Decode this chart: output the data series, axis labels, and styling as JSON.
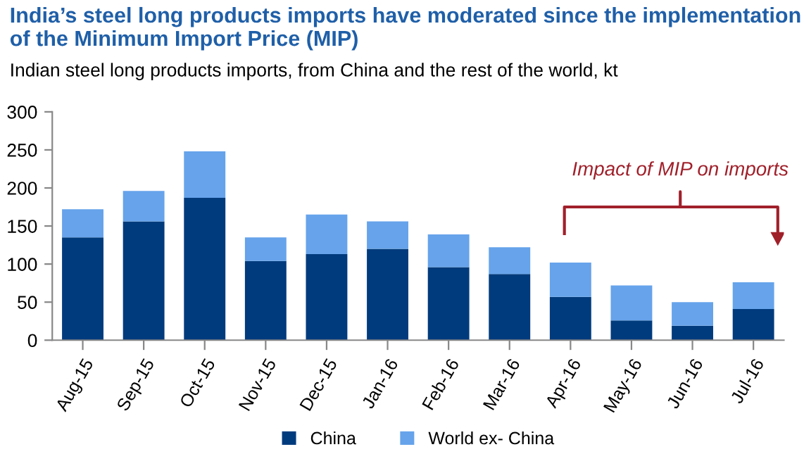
{
  "chart_data": {
    "type": "bar",
    "stacked": true,
    "title": "India’s steel long products imports have moderated since the implementation of the Minimum Import Price (MIP)",
    "subtitle": "Indian steel long products imports, from China and the rest of the world, kt",
    "categories": [
      "Aug-15",
      "Sep-15",
      "Oct-15",
      "Nov-15",
      "Dec-15",
      "Jan-16",
      "Feb-16",
      "Mar-16",
      "Apr-16",
      "May-16",
      "Jun-16",
      "Jul-16"
    ],
    "series": [
      {
        "name": "China",
        "color": "#003b7d",
        "values": [
          135,
          156,
          187,
          104,
          113,
          120,
          96,
          87,
          57,
          26,
          19,
          41
        ]
      },
      {
        "name": "World ex- China",
        "color": "#66a3eb",
        "values": [
          37,
          40,
          61,
          31,
          52,
          36,
          43,
          35,
          45,
          46,
          31,
          35
        ]
      }
    ],
    "ylim": [
      0,
      300
    ],
    "yticks": [
      0,
      50,
      100,
      150,
      200,
      250,
      300
    ],
    "grid": false,
    "legend": "bottom",
    "annotations": [
      "Impact of MIP on imports"
    ]
  }
}
